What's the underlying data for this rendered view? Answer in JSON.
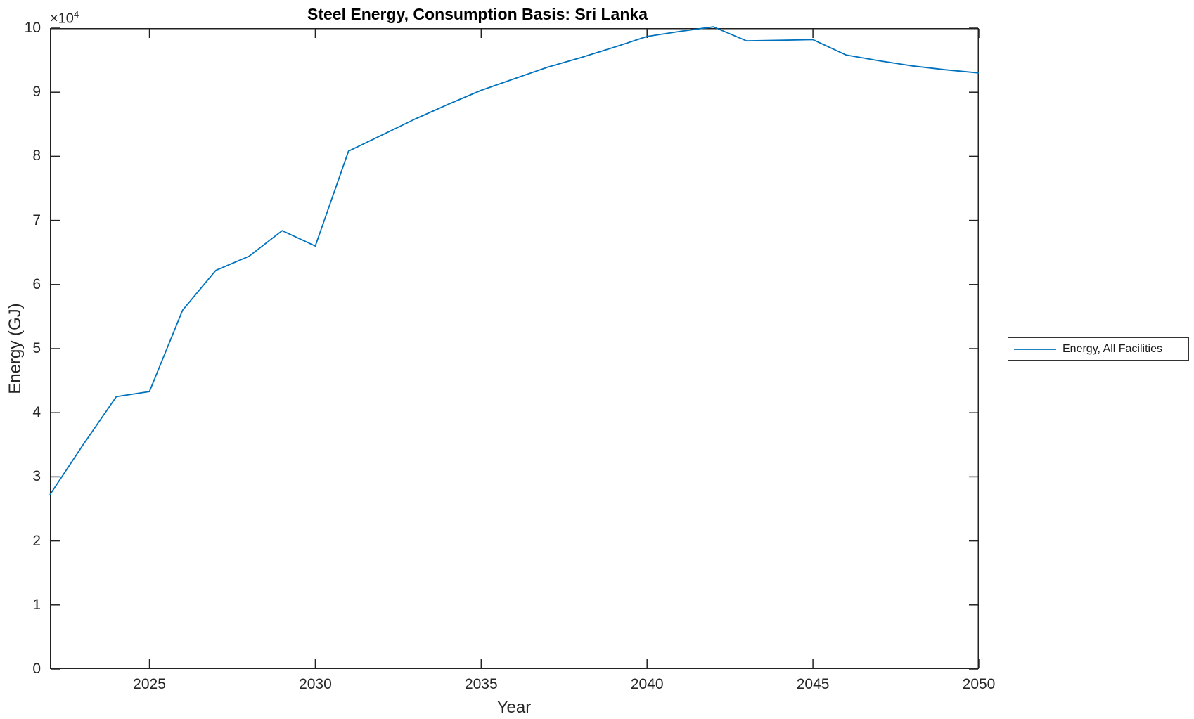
{
  "figure": {
    "title": "Steel Energy, Consumption Basis: Sri Lanka",
    "x_axis_label": "Year",
    "y_axis_label": "Energy (GJ)",
    "y_multiplier_base": "×10",
    "y_multiplier_exponent": "4"
  },
  "legend": {
    "entries": [
      {
        "label": "Energy, All Facilities",
        "color": "#0072BD"
      }
    ]
  },
  "colors": {
    "line": "#0072BD",
    "axis": "#222222",
    "tick_text": "#262626",
    "background": "#ffffff"
  },
  "chart_data": {
    "type": "line",
    "title": "Steel Energy, Consumption Basis: Sri Lanka",
    "xlabel": "Year",
    "ylabel": "Energy (GJ)",
    "x": [
      2022,
      2023,
      2024,
      2025,
      2026,
      2027,
      2028,
      2029,
      2030,
      2031,
      2032,
      2033,
      2034,
      2035,
      2036,
      2037,
      2038,
      2039,
      2040,
      2041,
      2042,
      2043,
      2044,
      2045,
      2046,
      2047,
      2048,
      2049,
      2050
    ],
    "series": [
      {
        "name": "Energy, All Facilities",
        "color": "#0072BD",
        "values": [
          27200,
          35000,
          42500,
          43300,
          56000,
          62200,
          64400,
          68400,
          66000,
          80800,
          83300,
          85800,
          88100,
          90300,
          92100,
          93900,
          95400,
          97000,
          98700,
          99500,
          100200,
          98000,
          98100,
          98200,
          95800,
          94900,
          94100,
          93500,
          93000
        ]
      }
    ],
    "xlim": [
      2022,
      2050
    ],
    "ylim": [
      0,
      100000
    ],
    "xticks": [
      2025,
      2030,
      2035,
      2040,
      2045,
      2050
    ],
    "yticks": {
      "values": [
        0,
        10000,
        20000,
        30000,
        40000,
        50000,
        60000,
        70000,
        80000,
        90000,
        100000
      ],
      "labels": [
        "0",
        "1",
        "2",
        "3",
        "4",
        "5",
        "6",
        "7",
        "8",
        "9",
        "10"
      ],
      "multiplier": "×10^4"
    },
    "grid": false,
    "legend_position": "right-outside"
  }
}
